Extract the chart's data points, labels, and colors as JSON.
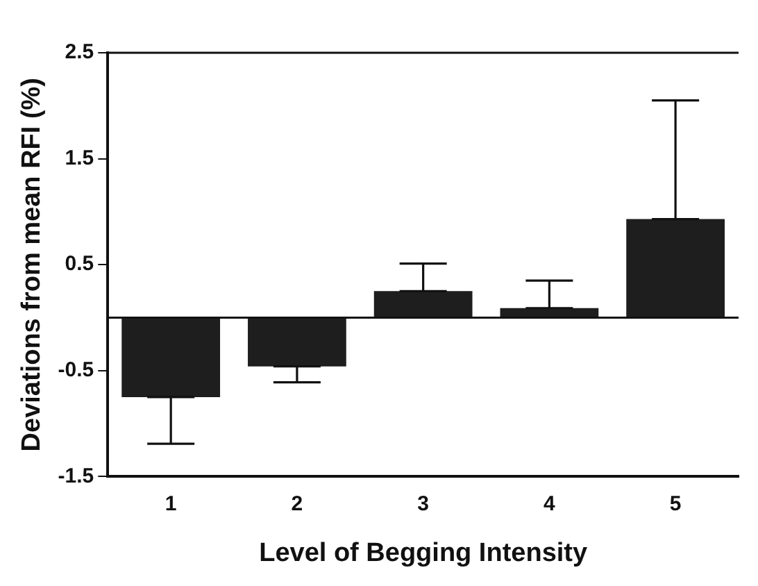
{
  "chart_data": {
    "type": "bar",
    "xlabel": "Level of Begging Intensity",
    "ylabel": "Deviations from mean RFI (%)",
    "categories": [
      "1",
      "2",
      "3",
      "4",
      "5"
    ],
    "values": [
      -0.75,
      -0.46,
      0.25,
      0.09,
      0.93
    ],
    "errors": [
      [
        -1.19,
        -0.75
      ],
      [
        -0.61,
        -0.46
      ],
      [
        0.25,
        0.51
      ],
      [
        0.09,
        0.35
      ],
      [
        0.93,
        2.05
      ]
    ],
    "color": "#1e1e1e",
    "ylim": [
      -1.5,
      2.5
    ],
    "yticks": [
      -1.5,
      -0.5,
      0.5,
      1.5,
      2.5
    ],
    "grid": false,
    "legend": false
  }
}
